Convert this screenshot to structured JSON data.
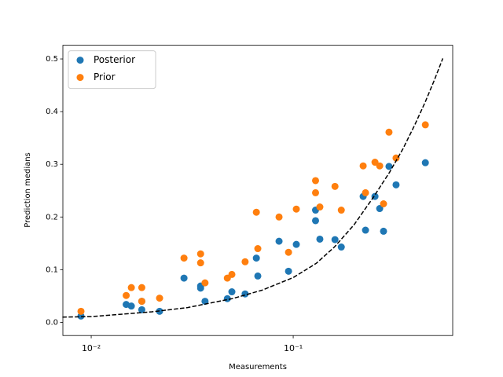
{
  "chart_data": {
    "type": "scatter",
    "xlabel": "Measurements",
    "ylabel": "Prediction medians",
    "xscale": "log",
    "xlim": [
      0.00724,
      0.616
    ],
    "ylim": [
      -0.025,
      0.526
    ],
    "xticks": [
      {
        "value": 0.01,
        "label": "10⁻²"
      },
      {
        "value": 0.1,
        "label": "10⁻¹"
      }
    ],
    "yticks": [
      {
        "value": 0,
        "label": "0.0"
      },
      0.1,
      0.2,
      0.3,
      0.4,
      0.5
    ],
    "legend": "upper left",
    "x": [
      0.0089,
      0.0149,
      0.0158,
      0.0178,
      0.0178,
      0.0218,
      0.0288,
      0.0348,
      0.0348,
      0.0366,
      0.0472,
      0.0497,
      0.0578,
      0.0657,
      0.0668,
      0.0851,
      0.0948,
      0.1036,
      0.129,
      0.129,
      0.1355,
      0.161,
      0.173,
      0.222,
      0.228,
      0.254,
      0.268,
      0.28,
      0.298,
      0.323,
      0.451
    ],
    "series": [
      {
        "name": "Posterior",
        "color": "#1f77b4",
        "values": [
          0.012,
          0.034,
          0.031,
          0.024,
          0.04,
          0.021,
          0.084,
          0.069,
          0.065,
          0.04,
          0.045,
          0.058,
          0.054,
          0.122,
          0.088,
          0.154,
          0.097,
          0.148,
          0.213,
          0.193,
          0.158,
          0.157,
          0.143,
          0.239,
          0.175,
          0.239,
          0.216,
          0.173,
          0.296,
          0.261,
          0.303
        ]
      },
      {
        "name": "Prior",
        "color": "#ff7f0e",
        "values": [
          0.021,
          0.051,
          0.066,
          0.066,
          0.04,
          0.046,
          0.122,
          0.13,
          0.113,
          0.075,
          0.084,
          0.091,
          0.115,
          0.209,
          0.14,
          0.2,
          0.133,
          0.215,
          0.269,
          0.246,
          0.219,
          0.258,
          0.213,
          0.297,
          0.246,
          0.304,
          0.297,
          0.225,
          0.361,
          0.312,
          0.375
        ]
      }
    ],
    "curve": {
      "color": "#000000",
      "dashed": true,
      "x": [
        0.0072,
        0.01,
        0.02,
        0.03,
        0.05,
        0.07,
        0.1,
        0.13,
        0.16,
        0.2,
        0.25,
        0.3,
        0.35,
        0.4,
        0.45,
        0.5,
        0.55
      ],
      "y": [
        0.01,
        0.011,
        0.02,
        0.028,
        0.045,
        0.061,
        0.085,
        0.112,
        0.143,
        0.185,
        0.238,
        0.285,
        0.33,
        0.375,
        0.418,
        0.46,
        0.501
      ]
    }
  }
}
